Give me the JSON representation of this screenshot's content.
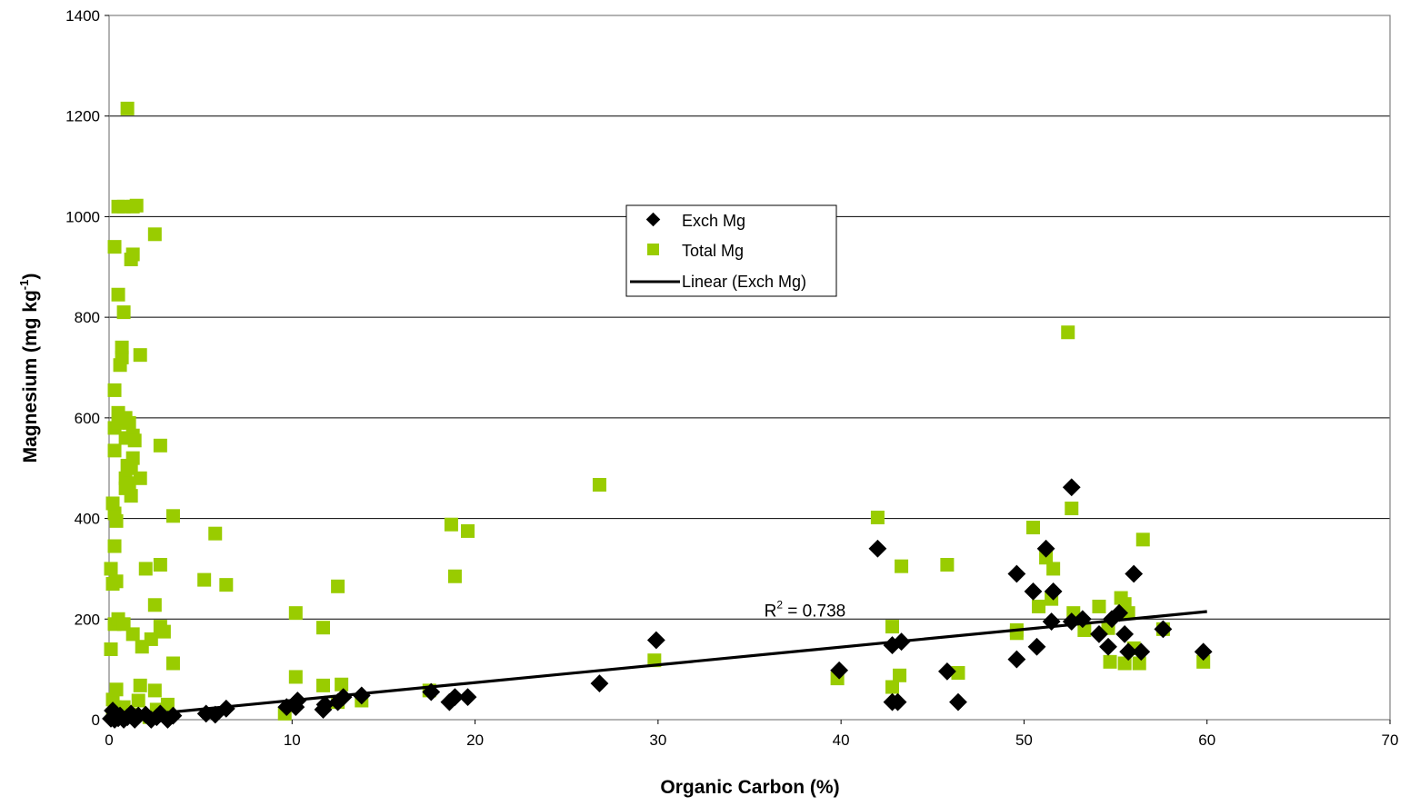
{
  "chart_data": {
    "type": "scatter",
    "title": "",
    "xlabel": "Organic Carbon (%)",
    "ylabel_main": "Magnesium (mg kg",
    "ylabel_sup": "-1",
    "ylabel_close": ")",
    "xlim": [
      0,
      70
    ],
    "ylim": [
      0,
      1400
    ],
    "x_ticks": [
      0,
      10,
      20,
      30,
      40,
      50,
      60,
      70
    ],
    "y_ticks": [
      0,
      200,
      400,
      600,
      800,
      1000,
      1200,
      1400
    ],
    "grid": "horizontal",
    "legend_position": "center",
    "legend": [
      {
        "label": "Exch Mg",
        "marker": "diamond",
        "color": "#000000"
      },
      {
        "label": "Total Mg",
        "marker": "square",
        "color": "#99CC00"
      },
      {
        "label": "Linear (Exch Mg)",
        "marker": "line",
        "color": "#000000"
      }
    ],
    "annotation": {
      "base": "R",
      "sup": "2",
      "rest": " = 0.738",
      "x": 35.8,
      "y": 205
    },
    "series": [
      {
        "name": "Total Mg",
        "marker": "square",
        "color": "#99CC00",
        "points": [
          [
            0.2,
            10
          ],
          [
            0.3,
            25
          ],
          [
            0.2,
            40
          ],
          [
            0.4,
            60
          ],
          [
            0.1,
            140
          ],
          [
            0.3,
            190
          ],
          [
            0.5,
            200
          ],
          [
            0.2,
            270
          ],
          [
            0.4,
            275
          ],
          [
            0.1,
            300
          ],
          [
            0.3,
            345
          ],
          [
            0.4,
            395
          ],
          [
            0.3,
            410
          ],
          [
            0.2,
            430
          ],
          [
            0.3,
            535
          ],
          [
            0.3,
            580
          ],
          [
            0.5,
            590
          ],
          [
            0.5,
            610
          ],
          [
            0.3,
            655
          ],
          [
            0.6,
            705
          ],
          [
            0.7,
            720
          ],
          [
            0.7,
            740
          ],
          [
            0.8,
            810
          ],
          [
            0.5,
            845
          ],
          [
            0.3,
            940
          ],
          [
            0.5,
            1020
          ],
          [
            0.8,
            1020
          ],
          [
            1.0,
            1215
          ],
          [
            1.3,
            1020
          ],
          [
            1.5,
            1022
          ],
          [
            1.2,
            915
          ],
          [
            1.3,
            925
          ],
          [
            2.5,
            965
          ],
          [
            1.7,
            725
          ],
          [
            0.9,
            600
          ],
          [
            1.1,
            590
          ],
          [
            0.9,
            560
          ],
          [
            1.3,
            565
          ],
          [
            1.4,
            555
          ],
          [
            1.0,
            505
          ],
          [
            1.2,
            500
          ],
          [
            1.3,
            520
          ],
          [
            0.9,
            480
          ],
          [
            1.1,
            470
          ],
          [
            0.9,
            460
          ],
          [
            1.2,
            445
          ],
          [
            1.7,
            480
          ],
          [
            2.8,
            545
          ],
          [
            0.8,
            190
          ],
          [
            1.3,
            170
          ],
          [
            1.8,
            145
          ],
          [
            2.3,
            160
          ],
          [
            2.5,
            228
          ],
          [
            2.0,
            300
          ],
          [
            2.8,
            308
          ],
          [
            2.8,
            185
          ],
          [
            3.0,
            175
          ],
          [
            3.5,
            405
          ],
          [
            3.5,
            112
          ],
          [
            1.7,
            68
          ],
          [
            2.5,
            58
          ],
          [
            1.6,
            38
          ],
          [
            0.8,
            25
          ],
          [
            1.3,
            10
          ],
          [
            2.2,
            5
          ],
          [
            3.2,
            30
          ],
          [
            2.6,
            20
          ],
          [
            5.2,
            278
          ],
          [
            5.8,
            370
          ],
          [
            6.4,
            268
          ],
          [
            10.2,
            212
          ],
          [
            10.2,
            85
          ],
          [
            9.6,
            12
          ],
          [
            11.7,
            183
          ],
          [
            12.5,
            265
          ],
          [
            11.7,
            68
          ],
          [
            12.7,
            70
          ],
          [
            12.5,
            35
          ],
          [
            13.8,
            38
          ],
          [
            17.5,
            58
          ],
          [
            18.7,
            388
          ],
          [
            18.9,
            285
          ],
          [
            19.6,
            375
          ],
          [
            26.8,
            467
          ],
          [
            29.8,
            118
          ],
          [
            39.8,
            82
          ],
          [
            42.0,
            402
          ],
          [
            42.8,
            185
          ],
          [
            42.8,
            65
          ],
          [
            43.3,
            305
          ],
          [
            43.2,
            88
          ],
          [
            45.8,
            308
          ],
          [
            46.4,
            93
          ],
          [
            49.6,
            172
          ],
          [
            49.6,
            178
          ],
          [
            50.5,
            382
          ],
          [
            50.8,
            225
          ],
          [
            51.2,
            322
          ],
          [
            51.5,
            240
          ],
          [
            51.6,
            300
          ],
          [
            52.4,
            770
          ],
          [
            52.6,
            420
          ],
          [
            52.7,
            212
          ],
          [
            53.3,
            178
          ],
          [
            54.1,
            225
          ],
          [
            54.6,
            182
          ],
          [
            54.7,
            115
          ],
          [
            55.3,
            242
          ],
          [
            55.5,
            230
          ],
          [
            55.5,
            112
          ],
          [
            55.7,
            212
          ],
          [
            56.0,
            142
          ],
          [
            56.3,
            112
          ],
          [
            56.5,
            358
          ],
          [
            57.6,
            180
          ],
          [
            59.8,
            115
          ]
        ]
      },
      {
        "name": "Exch Mg",
        "marker": "diamond",
        "color": "#000000",
        "points": [
          [
            0.1,
            2
          ],
          [
            0.2,
            5
          ],
          [
            0.3,
            0
          ],
          [
            0.4,
            10
          ],
          [
            0.5,
            3
          ],
          [
            0.2,
            18
          ],
          [
            0.6,
            8
          ],
          [
            0.8,
            0
          ],
          [
            1.0,
            5
          ],
          [
            1.2,
            12
          ],
          [
            1.4,
            0
          ],
          [
            1.6,
            8
          ],
          [
            2.0,
            10
          ],
          [
            2.3,
            0
          ],
          [
            2.6,
            5
          ],
          [
            2.8,
            12
          ],
          [
            3.2,
            0
          ],
          [
            3.5,
            8
          ],
          [
            5.3,
            12
          ],
          [
            5.8,
            10
          ],
          [
            6.4,
            22
          ],
          [
            9.7,
            25
          ],
          [
            10.2,
            25
          ],
          [
            10.3,
            38
          ],
          [
            11.7,
            20
          ],
          [
            11.8,
            30
          ],
          [
            12.5,
            35
          ],
          [
            12.8,
            45
          ],
          [
            13.8,
            48
          ],
          [
            17.6,
            55
          ],
          [
            18.6,
            35
          ],
          [
            18.9,
            45
          ],
          [
            19.6,
            45
          ],
          [
            26.8,
            72
          ],
          [
            29.9,
            158
          ],
          [
            39.9,
            98
          ],
          [
            42.0,
            340
          ],
          [
            42.8,
            148
          ],
          [
            42.8,
            35
          ],
          [
            43.1,
            35
          ],
          [
            43.3,
            155
          ],
          [
            45.8,
            96
          ],
          [
            46.4,
            35
          ],
          [
            49.6,
            290
          ],
          [
            49.6,
            120
          ],
          [
            50.5,
            255
          ],
          [
            50.7,
            145
          ],
          [
            51.2,
            340
          ],
          [
            51.5,
            195
          ],
          [
            51.6,
            255
          ],
          [
            52.6,
            462
          ],
          [
            52.6,
            195
          ],
          [
            53.2,
            200
          ],
          [
            54.1,
            170
          ],
          [
            54.6,
            145
          ],
          [
            54.8,
            200
          ],
          [
            55.2,
            212
          ],
          [
            55.5,
            170
          ],
          [
            55.7,
            135
          ],
          [
            56.0,
            290
          ],
          [
            56.4,
            135
          ],
          [
            57.6,
            180
          ],
          [
            59.8,
            135
          ]
        ]
      }
    ],
    "trendline": {
      "name": "Linear (Exch Mg)",
      "x": [
        0,
        60
      ],
      "y": [
        3,
        215
      ]
    }
  }
}
